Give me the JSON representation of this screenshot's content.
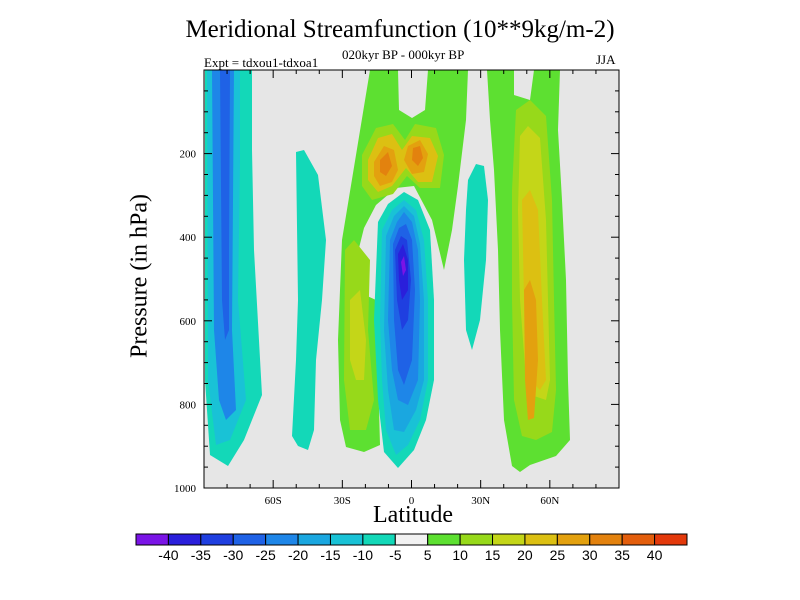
{
  "chart_data": {
    "type": "contour",
    "title": "Meridional Streamfunction (10**9kg/m-2)",
    "subtitle": "020kyr BP - 000kyr BP",
    "experiment": "Expt = tdxou1-tdxoa1",
    "season": "JJA",
    "xlabel": "Latitude",
    "ylabel": "Pressure (in hPa)",
    "xlim": [
      -90,
      90
    ],
    "ylim": [
      1000,
      0
    ],
    "x_ticks": [
      {
        "value": -60,
        "label": "60S"
      },
      {
        "value": -30,
        "label": "30S"
      },
      {
        "value": 0,
        "label": "0"
      },
      {
        "value": 30,
        "label": "30N"
      },
      {
        "value": 60,
        "label": "60N"
      }
    ],
    "y_ticks": [
      {
        "value": 200,
        "label": "200"
      },
      {
        "value": 400,
        "label": "400"
      },
      {
        "value": 600,
        "label": "600"
      },
      {
        "value": 800,
        "label": "800"
      },
      {
        "value": 1000,
        "label": "1000"
      }
    ],
    "colorbar": {
      "labels": [
        "-40",
        "-35",
        "-30",
        "-25",
        "-20",
        "-15",
        "-10",
        "-5",
        "5",
        "10",
        "15",
        "20",
        "25",
        "30",
        "35",
        "40"
      ],
      "colors": [
        "#7a14e6",
        "#2a1fdb",
        "#1f3fe0",
        "#1f62e6",
        "#1e86e8",
        "#1aa7e0",
        "#19c2d6",
        "#13d8b8",
        "#f2f2f2",
        "#5de031",
        "#97d91a",
        "#c4d618",
        "#dcc012",
        "#e3a10f",
        "#e3820e",
        "#e35e0c",
        "#e3390b"
      ]
    },
    "features": [
      {
        "name": "southern-high-latitude-negative-cell",
        "lat_range": [
          -82,
          -68
        ],
        "p_range": [
          0,
          960
        ],
        "value": -30
      },
      {
        "name": "southern-midlatitude-negative-cell",
        "lat_range": [
          -49,
          -38
        ],
        "p_range": [
          125,
          910
        ],
        "value": -10
      },
      {
        "name": "southern-positive-cell",
        "lat_range": [
          -25,
          -4
        ],
        "p_range": [
          0,
          950
        ],
        "value": 20
      },
      {
        "name": "equatorial-negative-cell",
        "lat_range": [
          -9,
          10
        ],
        "p_range": [
          270,
          940
        ],
        "value": -40
      },
      {
        "name": "northern-tropical-negative-cell",
        "lat_range": [
          20,
          32
        ],
        "p_range": [
          270,
          720
        ],
        "value": -10
      },
      {
        "name": "northern-positive-cell",
        "lat_range": [
          39,
          66
        ],
        "p_range": [
          0,
          960
        ],
        "value": 30
      }
    ]
  }
}
